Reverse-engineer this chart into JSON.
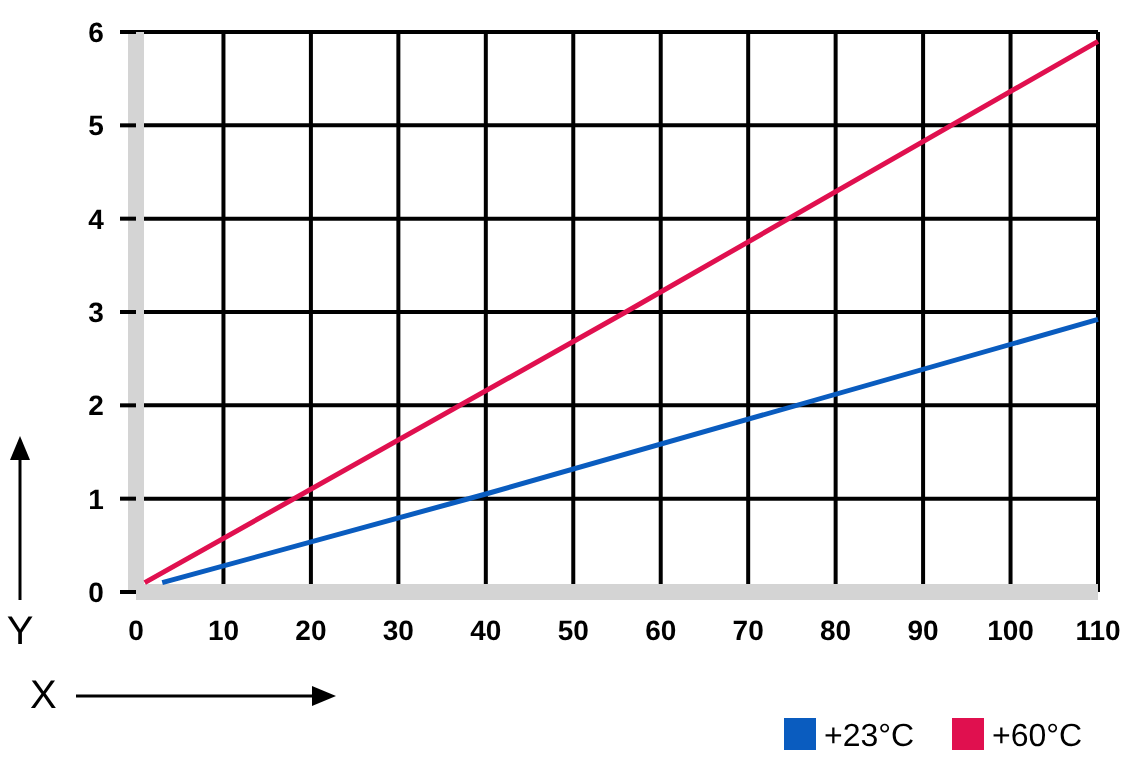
{
  "chart_data": {
    "type": "line",
    "xlabel": "X",
    "ylabel": "Y",
    "xlim": [
      0,
      110
    ],
    "ylim": [
      0,
      6
    ],
    "xticks": [
      0,
      10,
      20,
      30,
      40,
      50,
      60,
      70,
      80,
      90,
      100,
      110
    ],
    "yticks": [
      0,
      1,
      2,
      3,
      4,
      5,
      6
    ],
    "grid": true,
    "legend": "bottom right",
    "marker": "none",
    "line_style": "solid",
    "series": [
      {
        "name": "+23°C",
        "color": "#0a5cbf",
        "x": [
          3,
          40,
          110
        ],
        "values": [
          0.1,
          1.05,
          2.92
        ]
      },
      {
        "name": "+60°C",
        "color": "#e0104f",
        "x": [
          1,
          56,
          110
        ],
        "values": [
          0.1,
          3.0,
          5.9
        ]
      }
    ]
  }
}
